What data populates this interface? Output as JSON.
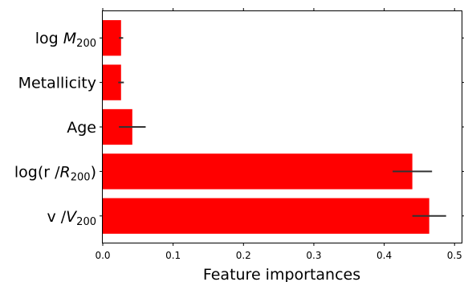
{
  "chart_data": {
    "type": "bar",
    "orientation": "horizontal",
    "xlabel": "Feature importances",
    "xlim": [
      0.0,
      0.51
    ],
    "xticks": [
      "0.0",
      "0.1",
      "0.2",
      "0.3",
      "0.4",
      "0.5"
    ],
    "bar_color": "#ff0000",
    "error_color": "#333333",
    "grid": false,
    "categories": [
      {
        "main": "log ",
        "italic": "M",
        "sub": "200",
        "suffix": "",
        "value": 0.026,
        "error": 0.003
      },
      {
        "main": "Metallicity",
        "italic": "",
        "sub": "",
        "suffix": "",
        "value": 0.026,
        "error": 0.004
      },
      {
        "main": "Age",
        "italic": "",
        "sub": "",
        "suffix": "",
        "value": 0.042,
        "error": 0.019
      },
      {
        "main": "log(r /",
        "italic": "R",
        "sub": "200",
        "suffix": ")",
        "value": 0.44,
        "error": 0.028
      },
      {
        "main": "v /",
        "italic": "V",
        "sub": "200",
        "suffix": "",
        "value": 0.464,
        "error": 0.024
      }
    ]
  }
}
